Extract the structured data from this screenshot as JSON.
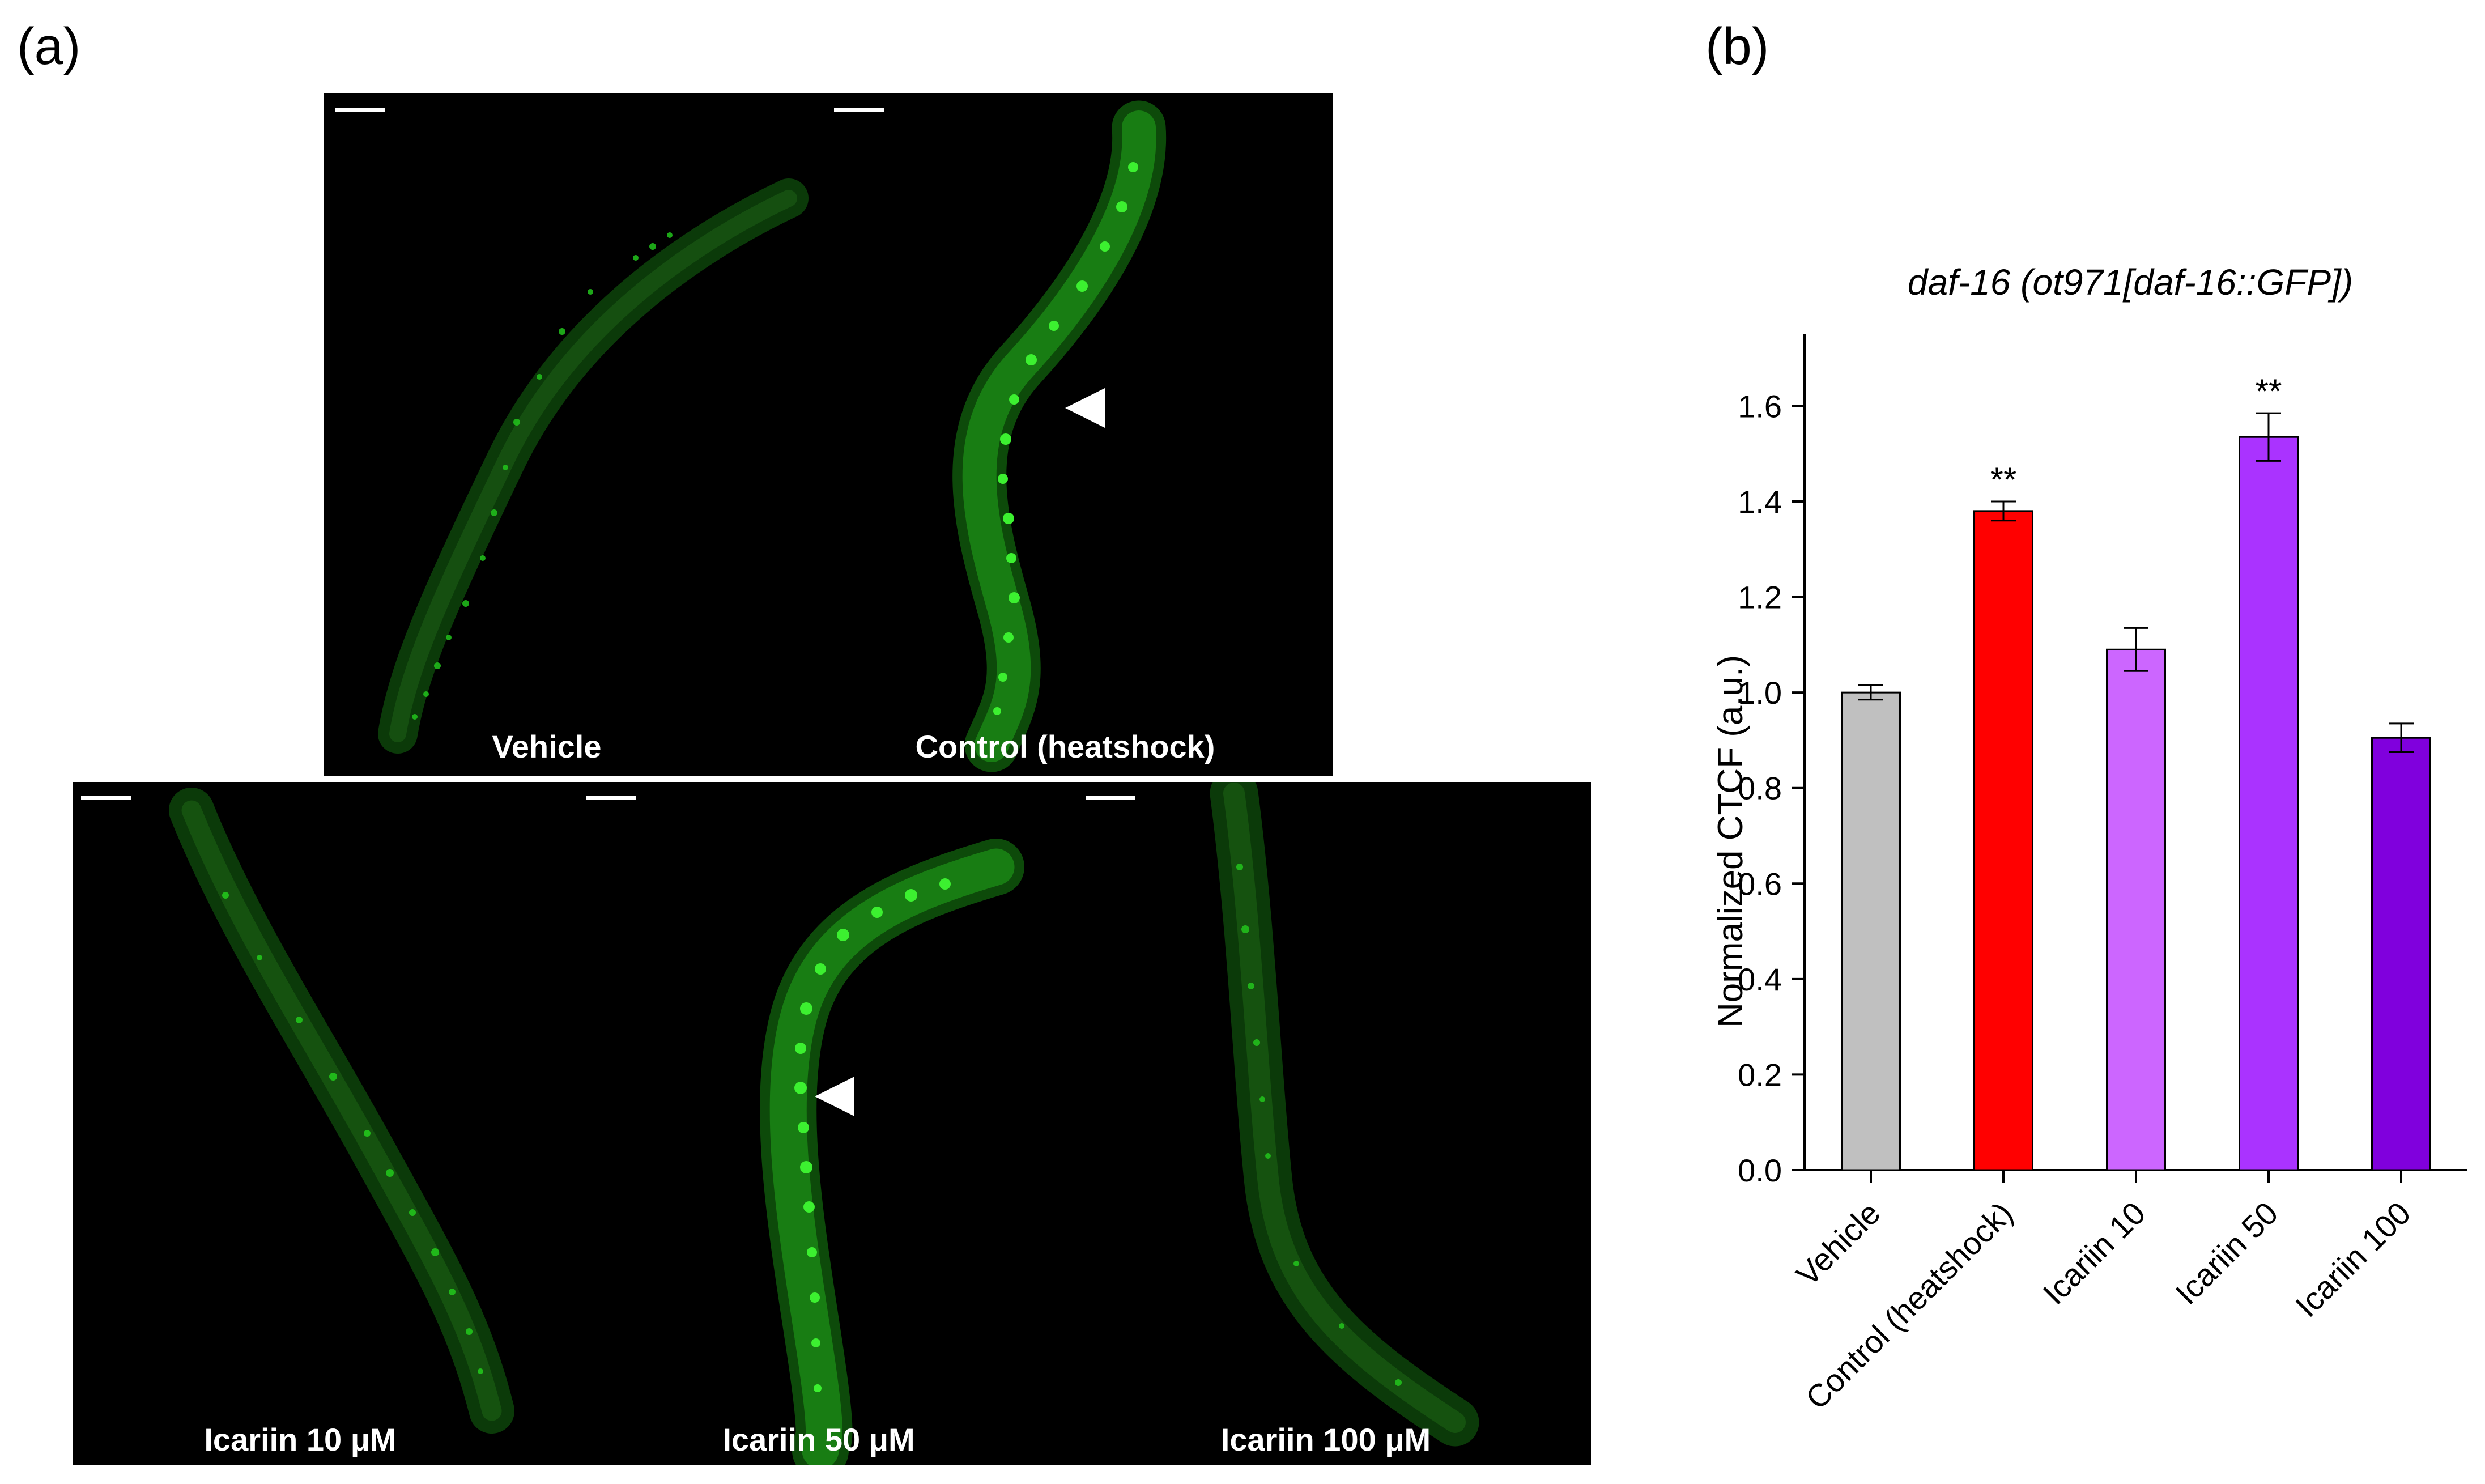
{
  "figure": {
    "panel_a_label": "(a)",
    "panel_b_label": "(b)"
  },
  "micrographs": [
    {
      "label": "Vehicle",
      "arrowhead": false
    },
    {
      "label": "Control (heatshock)",
      "arrowhead": true
    },
    {
      "label": "Icariin 10 μM",
      "arrowhead": false
    },
    {
      "label": "Icariin 50 μM",
      "arrowhead": true
    },
    {
      "label": "Icariin 100 μM",
      "arrowhead": false
    }
  ],
  "colors": {
    "image_background": "#000000",
    "gfp_green": "#22c41c",
    "arrowhead": "#ffffff",
    "bar_vehicle": "#c0c0c0",
    "bar_control": "#ff0000",
    "bar_icariin10": "#cc66ff",
    "bar_icariin50": "#aa33ff",
    "bar_icariin100": "#8000dd"
  },
  "chart_data": {
    "type": "bar",
    "title": "daf-16 (ot971[daf-16::GFP])",
    "xlabel": "",
    "ylabel": "Normalized CTCF (a.u.)",
    "ylim": [
      0,
      1.75
    ],
    "yticks": [
      "0.0",
      "0.2",
      "0.4",
      "0.6",
      "0.8",
      "1.0",
      "1.2",
      "1.4",
      "1.6"
    ],
    "categories": [
      "Vehicle",
      "Control (heatshock)",
      "Icariin 10",
      "Icariin 50",
      "Icariin 100"
    ],
    "values": [
      1.0,
      1.38,
      1.09,
      1.535,
      0.905
    ],
    "errors": [
      0.015,
      0.02,
      0.045,
      0.05,
      0.03
    ],
    "significance": [
      "",
      "**",
      "",
      "**",
      ""
    ],
    "bar_colors": [
      "#c0c0c0",
      "#ff0000",
      "#cc66ff",
      "#aa33ff",
      "#8000dd"
    ],
    "grid": false,
    "legend": "none"
  }
}
